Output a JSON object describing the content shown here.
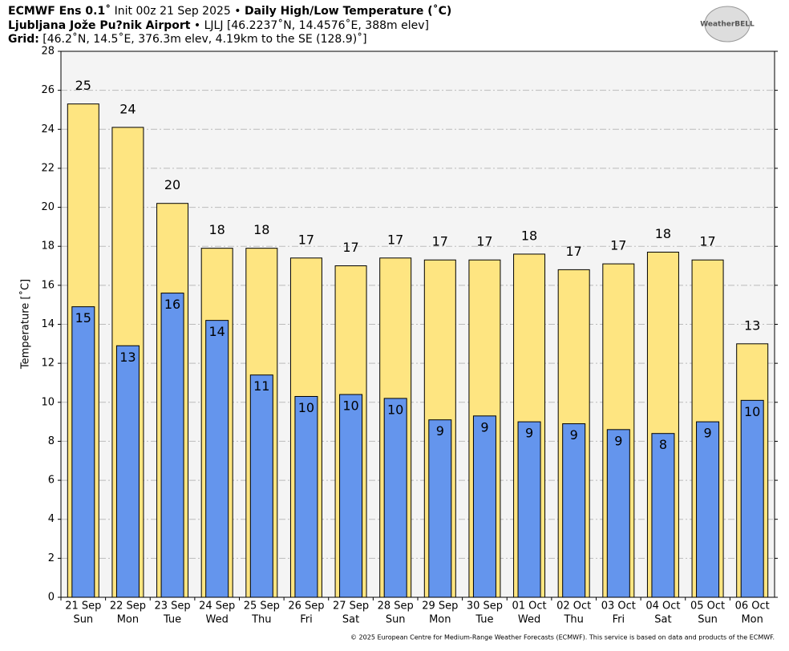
{
  "header": {
    "line1": {
      "model": "ECMWF Ens 0.1˚",
      "init": "Init 00z 21 Sep 2025 •",
      "title": "Daily High/Low Temperature (˚C)"
    },
    "line2": {
      "station": "Ljubljana Jože Pu?nik Airport",
      "info": "• LJLJ [46.2237˚N, 14.4576˚E, 388m elev]"
    },
    "line3": {
      "label": "Grid:",
      "info": "[46.2˚N, 14.5˚E, 376.3m elev, 4.19km to the SE (128.9)˚]"
    }
  },
  "logo": "WeatherBELL",
  "footer": "© 2025 European Centre for Medium-Range Weather Forecasts (ECMWF). This service is based on data and products of the ECMWF.",
  "chart_data": {
    "type": "bar",
    "ylabel": "Temperature [˚C]",
    "categories": [
      "21 Sep",
      "22 Sep",
      "23 Sep",
      "24 Sep",
      "25 Sep",
      "26 Sep",
      "27 Sep",
      "28 Sep",
      "29 Sep",
      "30 Sep",
      "01 Oct",
      "02 Oct",
      "03 Oct",
      "04 Oct",
      "05 Oct",
      "06 Oct"
    ],
    "weekdays": [
      "Sun",
      "Mon",
      "Tue",
      "Wed",
      "Thu",
      "Fri",
      "Sat",
      "Sun",
      "Mon",
      "Tue",
      "Wed",
      "Thu",
      "Fri",
      "Sat",
      "Sun",
      "Mon"
    ],
    "series": [
      {
        "name": "High",
        "color": "#fee581",
        "values": [
          25.3,
          24.1,
          20.2,
          17.9,
          17.9,
          17.4,
          17.0,
          17.4,
          17.3,
          17.3,
          17.6,
          16.8,
          17.1,
          17.7,
          17.3,
          13.0
        ],
        "value_labels": [
          "25",
          "24",
          "20",
          "18",
          "18",
          "17",
          "17",
          "17",
          "17",
          "17",
          "18",
          "17",
          "17",
          "18",
          "17",
          "13"
        ]
      },
      {
        "name": "Low",
        "color": "#6495ed",
        "values": [
          14.9,
          12.9,
          15.6,
          14.2,
          11.4,
          10.3,
          10.4,
          10.2,
          9.1,
          9.3,
          9.0,
          8.9,
          8.6,
          8.4,
          9.0,
          10.1
        ],
        "value_labels": [
          "15",
          "13",
          "16",
          "14",
          "11",
          "10",
          "10",
          "10",
          "9",
          "9",
          "9",
          "9",
          "9",
          "8",
          "9",
          "10"
        ]
      }
    ],
    "ylim": [
      0,
      28
    ],
    "yticks": [
      0,
      2,
      4,
      6,
      8,
      10,
      12,
      14,
      16,
      18,
      20,
      22,
      24,
      26,
      28
    ],
    "grid": true
  }
}
